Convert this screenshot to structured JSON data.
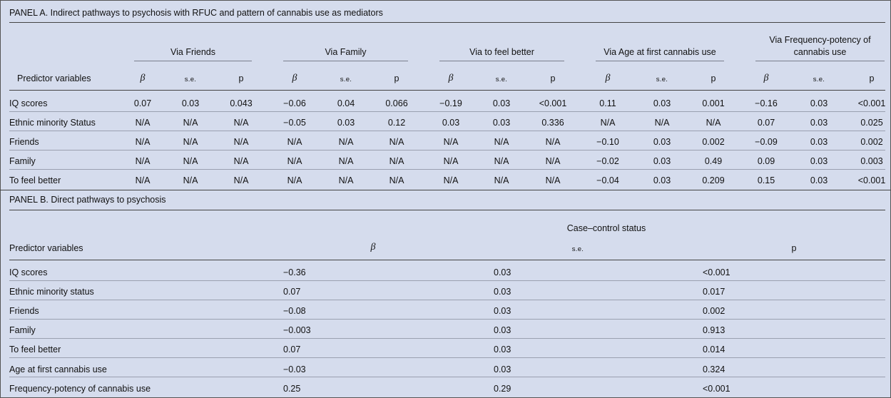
{
  "panel_a": {
    "title": "PANEL A. Indirect pathways to psychosis with RFUC and pattern of cannabis use as mediators",
    "predictor_header": "Predictor variables",
    "groups": [
      {
        "label_lines": [
          "Via Friends"
        ]
      },
      {
        "label_lines": [
          "Via Family"
        ]
      },
      {
        "label_lines": [
          "Via to feel better"
        ]
      },
      {
        "label_lines": [
          "Via Age at first cannabis use"
        ]
      },
      {
        "label_lines": [
          "Via Frequency-potency of",
          "cannabis use"
        ]
      }
    ],
    "subheaders": [
      "β",
      "s.e.",
      "p"
    ],
    "rows": [
      {
        "label": "IQ scores",
        "values": [
          "0.07",
          "0.03",
          "0.043",
          "−0.06",
          "0.04",
          "0.066",
          "−0.19",
          "0.03",
          "<0.001",
          "0.11",
          "0.03",
          "0.001",
          "−0.16",
          "0.03",
          "<0.001"
        ]
      },
      {
        "label": "Ethnic minority Status",
        "values": [
          "N/A",
          "N/A",
          "N/A",
          "−0.05",
          "0.03",
          "0.12",
          "0.03",
          "0.03",
          "0.336",
          "N/A",
          "N/A",
          "N/A",
          "0.07",
          "0.03",
          "0.025"
        ]
      },
      {
        "label": "Friends",
        "values": [
          "N/A",
          "N/A",
          "N/A",
          "N/A",
          "N/A",
          "N/A",
          "N/A",
          "N/A",
          "N/A",
          "−0.10",
          "0.03",
          "0.002",
          "−0.09",
          "0.03",
          "0.002"
        ]
      },
      {
        "label": "Family",
        "values": [
          "N/A",
          "N/A",
          "N/A",
          "N/A",
          "N/A",
          "N/A",
          "N/A",
          "N/A",
          "N/A",
          "−0.02",
          "0.03",
          "0.49",
          "0.09",
          "0.03",
          "0.003"
        ]
      },
      {
        "label": "To feel better",
        "values": [
          "N/A",
          "N/A",
          "N/A",
          "N/A",
          "N/A",
          "N/A",
          "N/A",
          "N/A",
          "N/A",
          "−0.04",
          "0.03",
          "0.209",
          "0.15",
          "0.03",
          "<0.001"
        ]
      }
    ]
  },
  "panel_b": {
    "title": "PANEL B. Direct pathways to psychosis",
    "group_header": "Case–control status",
    "predictor_header": "Predictor variables",
    "subheaders": [
      "β",
      "s.e.",
      "p"
    ],
    "rows": [
      {
        "label": "IQ scores",
        "values": [
          "−0.36",
          "0.03",
          "<0.001"
        ]
      },
      {
        "label": "Ethnic minority status",
        "values": [
          "0.07",
          "0.03",
          "0.017"
        ]
      },
      {
        "label": "Friends",
        "values": [
          "−0.08",
          "0.03",
          "0.002"
        ]
      },
      {
        "label": "Family",
        "values": [
          "−0.003",
          "0.03",
          "0.913"
        ]
      },
      {
        "label": "To feel better",
        "values": [
          "0.07",
          "0.03",
          "0.014"
        ]
      },
      {
        "label": "Age at first cannabis use",
        "values": [
          "−0.03",
          "0.03",
          "0.324"
        ]
      },
      {
        "label": "Frequency-potency of cannabis use",
        "values": [
          "0.25",
          "0.29",
          "<0.001"
        ]
      }
    ]
  }
}
